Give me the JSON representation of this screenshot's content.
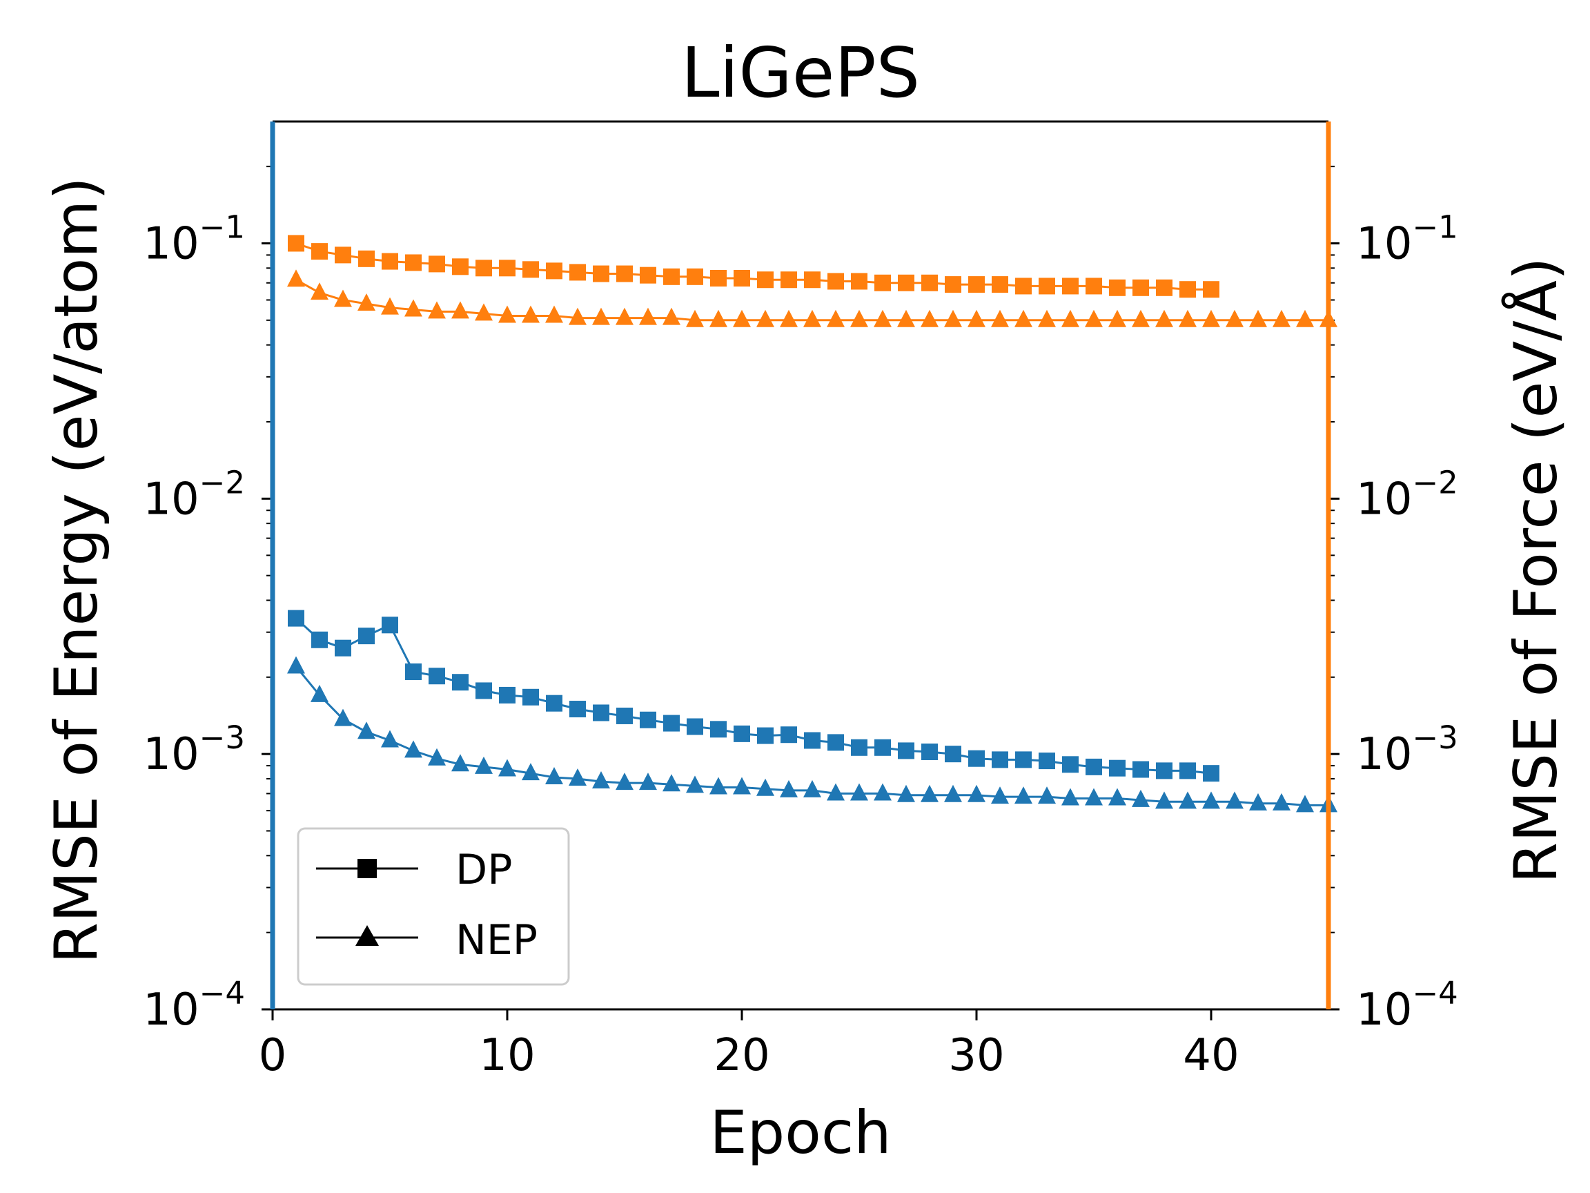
{
  "chart_data": {
    "type": "line",
    "title": "LiGePS",
    "xlabel": "Epoch",
    "ylabel_left": "RMSE of Energy (eV/atom)",
    "ylabel_right": "RMSE of Force (eV/Å)",
    "xlim": [
      0,
      45
    ],
    "ylim": [
      0.0001,
      0.3
    ],
    "yscale": "log",
    "xticks": [
      0,
      10,
      20,
      30,
      40
    ],
    "yticks": [
      {
        "value": 0.1,
        "base": "10",
        "exp": "−1"
      },
      {
        "value": 0.01,
        "base": "10",
        "exp": "−2"
      },
      {
        "value": 0.001,
        "base": "10",
        "exp": "−3"
      },
      {
        "value": 0.0001,
        "base": "10",
        "exp": "−4"
      }
    ],
    "left_axis_color": "#1f77b4",
    "right_axis_color": "#ff7f0e",
    "legend_position": "lower-left",
    "legend": [
      {
        "label": "DP",
        "marker": "square"
      },
      {
        "label": "NEP",
        "marker": "triangle"
      }
    ],
    "series": [
      {
        "model": "DP",
        "quantity": "energy",
        "marker": "square",
        "color": "#1f77b4",
        "x": [
          1,
          2,
          3,
          4,
          5,
          6,
          7,
          8,
          9,
          10,
          11,
          12,
          13,
          14,
          15,
          16,
          17,
          18,
          19,
          20,
          21,
          22,
          23,
          24,
          25,
          26,
          27,
          28,
          29,
          30,
          31,
          32,
          33,
          34,
          35,
          36,
          37,
          38,
          39,
          40
        ],
        "y": [
          0.0034,
          0.0028,
          0.0026,
          0.0029,
          0.0032,
          0.0021,
          0.00202,
          0.00191,
          0.00177,
          0.0017,
          0.00167,
          0.00158,
          0.0015,
          0.00145,
          0.00141,
          0.00136,
          0.00132,
          0.00128,
          0.00125,
          0.0012,
          0.00118,
          0.00119,
          0.00113,
          0.00111,
          0.00106,
          0.00106,
          0.00103,
          0.00102,
          0.001,
          0.00096,
          0.00095,
          0.00095,
          0.00094,
          0.00091,
          0.00089,
          0.00088,
          0.00087,
          0.00086,
          0.00086,
          0.00084
        ]
      },
      {
        "model": "NEP",
        "quantity": "energy",
        "marker": "triangle",
        "color": "#1f77b4",
        "x": [
          1,
          2,
          3,
          4,
          5,
          6,
          7,
          8,
          9,
          10,
          11,
          12,
          13,
          14,
          15,
          16,
          17,
          18,
          19,
          20,
          21,
          22,
          23,
          24,
          25,
          26,
          27,
          28,
          29,
          30,
          31,
          32,
          33,
          34,
          35,
          36,
          37,
          38,
          39,
          40,
          41,
          42,
          43,
          44,
          45
        ],
        "y": [
          0.0022,
          0.0017,
          0.00137,
          0.00122,
          0.00113,
          0.00103,
          0.00096,
          0.00091,
          0.00089,
          0.00087,
          0.00084,
          0.00081,
          0.0008,
          0.00078,
          0.00077,
          0.00077,
          0.00076,
          0.00075,
          0.00074,
          0.00074,
          0.00073,
          0.00072,
          0.00072,
          0.0007,
          0.0007,
          0.0007,
          0.00069,
          0.00069,
          0.00069,
          0.00069,
          0.00068,
          0.00068,
          0.00068,
          0.00067,
          0.00067,
          0.00067,
          0.00066,
          0.00065,
          0.00065,
          0.00065,
          0.00065,
          0.00064,
          0.00064,
          0.00063,
          0.00063
        ]
      },
      {
        "model": "DP",
        "quantity": "force",
        "marker": "square",
        "color": "#ff7f0e",
        "x": [
          1,
          2,
          3,
          4,
          5,
          6,
          7,
          8,
          9,
          10,
          11,
          12,
          13,
          14,
          15,
          16,
          17,
          18,
          19,
          20,
          21,
          22,
          23,
          24,
          25,
          26,
          27,
          28,
          29,
          30,
          31,
          32,
          33,
          34,
          35,
          36,
          37,
          38,
          39,
          40
        ],
        "y": [
          0.1,
          0.093,
          0.09,
          0.087,
          0.085,
          0.084,
          0.083,
          0.081,
          0.08,
          0.08,
          0.079,
          0.078,
          0.077,
          0.076,
          0.076,
          0.075,
          0.074,
          0.074,
          0.073,
          0.073,
          0.072,
          0.072,
          0.072,
          0.071,
          0.071,
          0.07,
          0.07,
          0.07,
          0.069,
          0.069,
          0.069,
          0.068,
          0.068,
          0.068,
          0.068,
          0.067,
          0.067,
          0.067,
          0.066,
          0.066
        ]
      },
      {
        "model": "NEP",
        "quantity": "force",
        "marker": "triangle",
        "color": "#ff7f0e",
        "x": [
          1,
          2,
          3,
          4,
          5,
          6,
          7,
          8,
          9,
          10,
          11,
          12,
          13,
          14,
          15,
          16,
          17,
          18,
          19,
          20,
          21,
          22,
          23,
          24,
          25,
          26,
          27,
          28,
          29,
          30,
          31,
          32,
          33,
          34,
          35,
          36,
          37,
          38,
          39,
          40,
          41,
          42,
          43,
          44,
          45
        ],
        "y": [
          0.072,
          0.064,
          0.06,
          0.058,
          0.056,
          0.055,
          0.054,
          0.054,
          0.053,
          0.052,
          0.052,
          0.052,
          0.051,
          0.051,
          0.051,
          0.051,
          0.051,
          0.05,
          0.05,
          0.05,
          0.05,
          0.05,
          0.05,
          0.05,
          0.05,
          0.05,
          0.05,
          0.05,
          0.05,
          0.05,
          0.05,
          0.05,
          0.05,
          0.05,
          0.05,
          0.05,
          0.05,
          0.05,
          0.05,
          0.05,
          0.05,
          0.05,
          0.05,
          0.05,
          0.05
        ]
      }
    ]
  }
}
